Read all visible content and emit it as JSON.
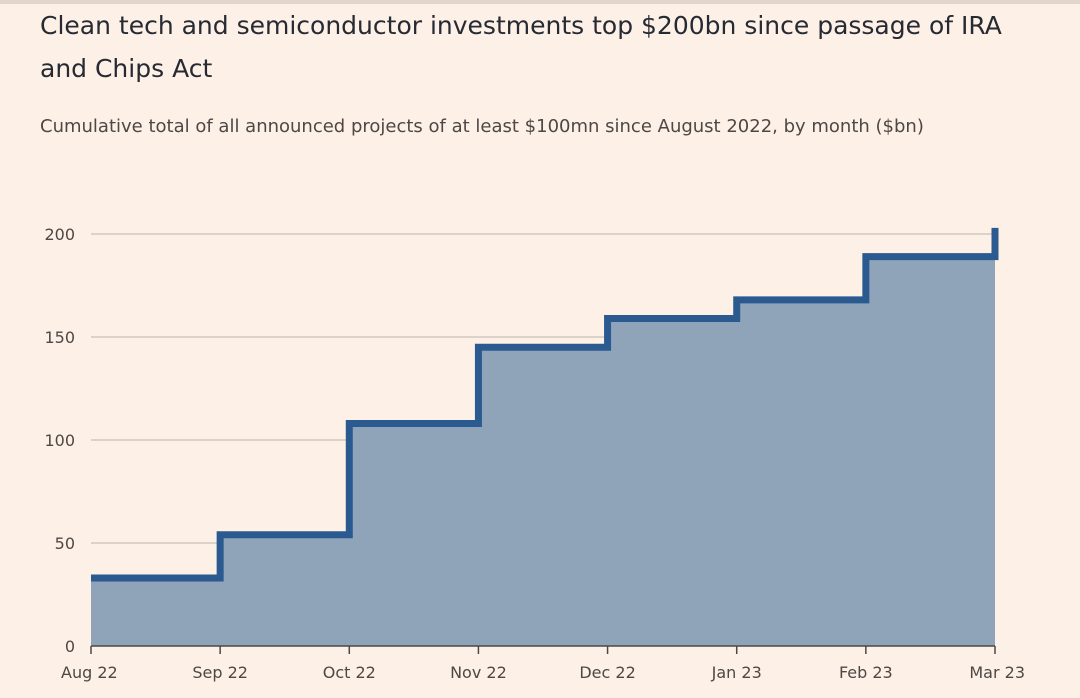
{
  "title": "Clean tech and semiconductor investments top $200bn since passage of IRA and Chips Act",
  "subtitle": "Cumulative total of all announced projects of at least $100mn since August 2022, by month ($bn)",
  "chart_data": {
    "type": "area",
    "step": true,
    "title": "Clean tech and semiconductor investments top $200bn since passage of IRA and Chips Act",
    "subtitle": "Cumulative total of all announced projects of at least $100mn since August 2022, by month ($bn)",
    "xlabel": "",
    "ylabel": "",
    "categories": [
      "Aug 22",
      "Sep 22",
      "Oct 22",
      "Nov 22",
      "Dec 22",
      "Jan 23",
      "Feb 23",
      "Mar 23"
    ],
    "values": [
      33,
      54,
      108,
      145,
      159,
      168,
      189,
      203
    ],
    "ylim": [
      0,
      200
    ],
    "yticks": [
      0,
      50,
      100,
      150,
      200
    ],
    "grid": true,
    "colors": {
      "line": "#2a5a8f",
      "fill": "#8fa3b9",
      "grid": "#c9bfb6",
      "axis": "#4d4845"
    }
  }
}
